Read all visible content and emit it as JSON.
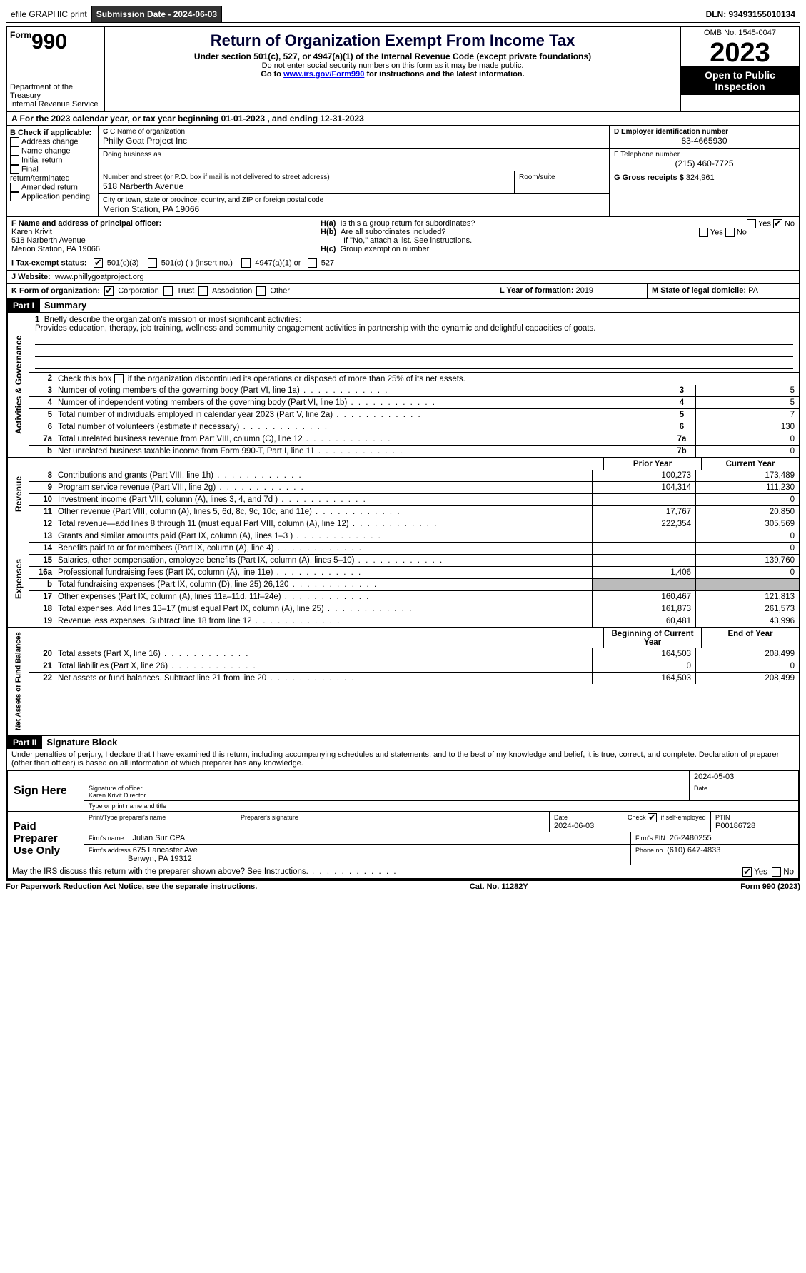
{
  "header": {
    "efile": "efile GRAPHIC print",
    "submission_label": "Submission Date - 2024-06-03",
    "dln_label": "DLN: 93493155010134"
  },
  "title_block": {
    "form_label": "Form",
    "form_num": "990",
    "dept": "Department of the Treasury",
    "irs": "Internal Revenue Service",
    "title": "Return of Organization Exempt From Income Tax",
    "sub": "Under section 501(c), 527, or 4947(a)(1) of the Internal Revenue Code (except private foundations)",
    "note1": "Do not enter social security numbers on this form as it may be made public.",
    "note2_pre": "Go to ",
    "note2_link": "www.irs.gov/Form990",
    "note2_post": " for instructions and the latest information.",
    "omb": "OMB No. 1545-0047",
    "year": "2023",
    "open": "Open to Public Inspection"
  },
  "section_a": "A  For the 2023 calendar year, or tax year beginning 01-01-2023    , and ending 12-31-2023",
  "col_b": {
    "hdr": "B Check if applicable:",
    "items": [
      "Address change",
      "Name change",
      "Initial return",
      "Final return/terminated",
      "Amended return",
      "Application pending"
    ]
  },
  "col_c": {
    "name_lbl": "C Name of organization",
    "name": "Philly Goat Project Inc",
    "dba_lbl": "Doing business as",
    "street_lbl": "Number and street (or P.O. box if mail is not delivered to street address)",
    "street": "518 Narberth Avenue",
    "room_lbl": "Room/suite",
    "city_lbl": "City or town, state or province, country, and ZIP or foreign postal code",
    "city": "Merion Station, PA   19066"
  },
  "col_d": {
    "ein_lbl": "D Employer identification number",
    "ein": "83-4665930",
    "tel_lbl": "E Telephone number",
    "tel": "(215) 460-7725",
    "gross_lbl": "G Gross receipts $",
    "gross": "324,961"
  },
  "section_f": {
    "lbl": "F  Name and address of principal officer:",
    "name": "Karen Krivit",
    "street": "518 Narberth Avenue",
    "city": "Merion Station, PA   19066"
  },
  "section_h": {
    "a_lbl": "H(a)  Is this a group return for subordinates?",
    "b_lbl": "H(b)  Are all subordinates included?",
    "b_note": "If \"No,\" attach a list. See instructions.",
    "c_lbl": "H(c)  Group exemption number",
    "yes": "Yes",
    "no": "No"
  },
  "section_i": {
    "lbl": "I    Tax-exempt status:",
    "c3": "501(c)(3)",
    "c": "501(c) (  ) (insert no.)",
    "a1": "4947(a)(1) or",
    "527": "527"
  },
  "section_j": {
    "lbl": "J   Website:",
    "val": "www.phillygoatproject.org"
  },
  "section_k": {
    "lbl": "K Form of organization:",
    "corp": "Corporation",
    "trust": "Trust",
    "assoc": "Association",
    "other": "Other"
  },
  "section_l": {
    "lbl": "L Year of formation:",
    "val": "2019"
  },
  "section_m": {
    "lbl": "M State of legal domicile:",
    "val": "PA"
  },
  "part1": {
    "hdr": "Part I",
    "title": "Summary",
    "vert_ag": "Activities & Governance",
    "vert_rev": "Revenue",
    "vert_exp": "Expenses",
    "vert_na": "Net Assets or Fund Balances",
    "l1_lbl": "Briefly describe the organization's mission or most significant activities:",
    "l1_txt": "Provides education, therapy, job training, wellness and community engagement activities in partnership with the dynamic and delightful capacities of goats.",
    "l2": "Check this box      if the organization discontinued its operations or disposed of more than 25% of its net assets.",
    "lines_ag": [
      {
        "n": "3",
        "t": "Number of voting members of the governing body (Part VI, line 1a)",
        "b": "3",
        "v": "5"
      },
      {
        "n": "4",
        "t": "Number of independent voting members of the governing body (Part VI, line 1b)",
        "b": "4",
        "v": "5"
      },
      {
        "n": "5",
        "t": "Total number of individuals employed in calendar year 2023 (Part V, line 2a)",
        "b": "5",
        "v": "7"
      },
      {
        "n": "6",
        "t": "Total number of volunteers (estimate if necessary)",
        "b": "6",
        "v": "130"
      },
      {
        "n": "7a",
        "t": "Total unrelated business revenue from Part VIII, column (C), line 12",
        "b": "7a",
        "v": "0"
      },
      {
        "n": "b",
        "t": "Net unrelated business taxable income from Form 990-T, Part I, line 11",
        "b": "7b",
        "v": "0"
      }
    ],
    "col_prior": "Prior Year",
    "col_curr": "Current Year",
    "lines_rev": [
      {
        "n": "8",
        "t": "Contributions and grants (Part VIII, line 1h)",
        "p": "100,273",
        "c": "173,489"
      },
      {
        "n": "9",
        "t": "Program service revenue (Part VIII, line 2g)",
        "p": "104,314",
        "c": "111,230"
      },
      {
        "n": "10",
        "t": "Investment income (Part VIII, column (A), lines 3, 4, and 7d )",
        "p": "",
        "c": "0"
      },
      {
        "n": "11",
        "t": "Other revenue (Part VIII, column (A), lines 5, 6d, 8c, 9c, 10c, and 11e)",
        "p": "17,767",
        "c": "20,850"
      },
      {
        "n": "12",
        "t": "Total revenue—add lines 8 through 11 (must equal Part VIII, column (A), line 12)",
        "p": "222,354",
        "c": "305,569"
      }
    ],
    "lines_exp": [
      {
        "n": "13",
        "t": "Grants and similar amounts paid (Part IX, column (A), lines 1–3 )",
        "p": "",
        "c": "0"
      },
      {
        "n": "14",
        "t": "Benefits paid to or for members (Part IX, column (A), line 4)",
        "p": "",
        "c": "0"
      },
      {
        "n": "15",
        "t": "Salaries, other compensation, employee benefits (Part IX, column (A), lines 5–10)",
        "p": "",
        "c": "139,760"
      },
      {
        "n": "16a",
        "t": "Professional fundraising fees (Part IX, column (A), line 11e)",
        "p": "1,406",
        "c": "0"
      },
      {
        "n": "b",
        "t": "Total fundraising expenses (Part IX, column (D), line 25) 26,120",
        "p": "grey",
        "c": "grey"
      },
      {
        "n": "17",
        "t": "Other expenses (Part IX, column (A), lines 11a–11d, 11f–24e)",
        "p": "160,467",
        "c": "121,813"
      },
      {
        "n": "18",
        "t": "Total expenses. Add lines 13–17 (must equal Part IX, column (A), line 25)",
        "p": "161,873",
        "c": "261,573"
      },
      {
        "n": "19",
        "t": "Revenue less expenses. Subtract line 18 from line 12",
        "p": "60,481",
        "c": "43,996"
      }
    ],
    "col_beg": "Beginning of Current Year",
    "col_end": "End of Year",
    "lines_na": [
      {
        "n": "20",
        "t": "Total assets (Part X, line 16)",
        "p": "164,503",
        "c": "208,499"
      },
      {
        "n": "21",
        "t": "Total liabilities (Part X, line 26)",
        "p": "0",
        "c": "0"
      },
      {
        "n": "22",
        "t": "Net assets or fund balances. Subtract line 21 from line 20",
        "p": "164,503",
        "c": "208,499"
      }
    ]
  },
  "part2": {
    "hdr": "Part II",
    "title": "Signature Block",
    "decl": "Under penalties of perjury, I declare that I have examined this return, including accompanying schedules and statements, and to the best of my knowledge and belief, it is true, correct, and complete. Declaration of preparer (other than officer) is based on all information of which preparer has any knowledge."
  },
  "sign": {
    "here": "Sign Here",
    "date": "2024-05-03",
    "sig_lbl": "Signature of officer",
    "name": "Karen Krivit  Director",
    "type_lbl": "Type or print name and title",
    "paid": "Paid Preparer Use Only",
    "prep_name_lbl": "Print/Type preparer's name",
    "prep_sig_lbl": "Preparer's signature",
    "prep_date_lbl": "Date",
    "prep_date": "2024-06-03",
    "check_lbl": "Check",
    "check_txt": "if self-employed",
    "ptin_lbl": "PTIN",
    "ptin": "P00186728",
    "firm_name_lbl": "Firm's name",
    "firm_name": "Julian Sur CPA",
    "firm_ein_lbl": "Firm's EIN",
    "firm_ein": "26-2480255",
    "firm_addr_lbl": "Firm's address",
    "firm_addr": "675 Lancaster Ave",
    "firm_city": "Berwyn, PA  19312",
    "phone_lbl": "Phone no.",
    "phone": "(610) 647-4833",
    "discuss": "May the IRS discuss this return with the preparer shown above? See Instructions."
  },
  "footer": {
    "pra": "For Paperwork Reduction Act Notice, see the separate instructions.",
    "cat": "Cat. No. 11282Y",
    "form": "Form 990 (2023)"
  }
}
